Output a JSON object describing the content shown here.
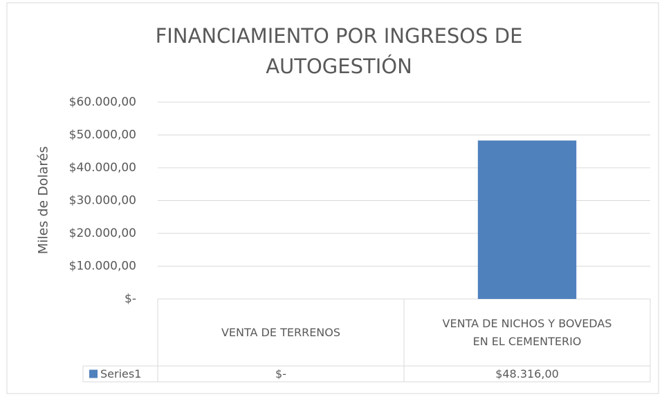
{
  "chart_data": {
    "type": "bar",
    "title": "FINANCIAMIENTO POR INGRESOS DE AUTOGESTIÓN",
    "y_label": "Miles de Dolarés",
    "categories": [
      "VENTA DE TERRENOS",
      "VENTA DE NICHOS Y BOVEDAS EN EL CEMENTERIO"
    ],
    "series": [
      {
        "name": "Series1",
        "color": "#4f81bd",
        "values": [
          0,
          48316
        ],
        "value_labels": [
          "$-",
          "$48.316,00"
        ]
      }
    ],
    "ylim": [
      0,
      60000
    ],
    "yticks": [
      {
        "value": 0,
        "label": "$-"
      },
      {
        "value": 10000,
        "label": "$10.000,00"
      },
      {
        "value": 20000,
        "label": "$20.000,00"
      },
      {
        "value": 30000,
        "label": "$30.000,00"
      },
      {
        "value": 40000,
        "label": "$40.000,00"
      },
      {
        "value": 50000,
        "label": "$50.000,00"
      },
      {
        "value": 60000,
        "label": "$60.000,00"
      }
    ],
    "grid": true
  }
}
